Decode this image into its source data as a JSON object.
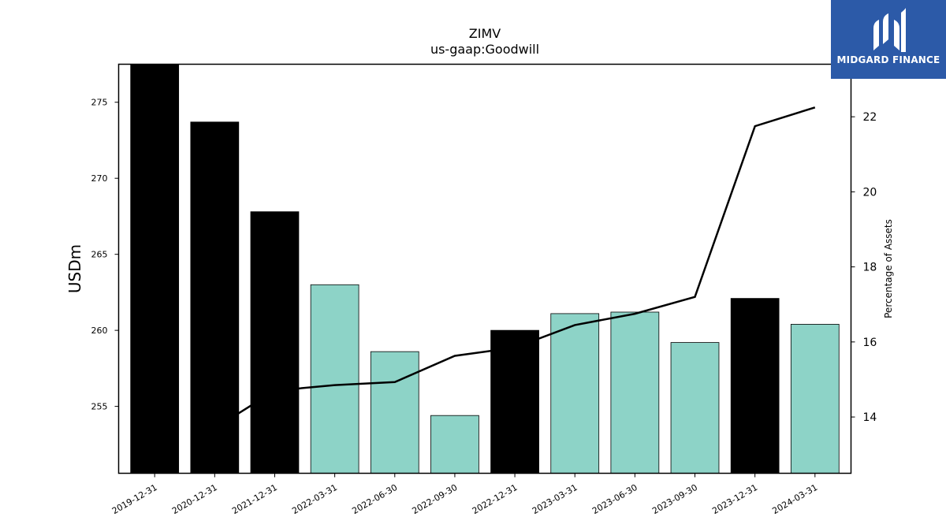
{
  "chart_data": {
    "type": "bar",
    "title": "ZIMV",
    "subtitle": "us-gaap:Goodwill",
    "ylabel": "USDm",
    "y2label": "Percentage of Assets",
    "categories": [
      "2019-12-31",
      "2020-12-31",
      "2021-12-31",
      "2022-03-31",
      "2022-06-30",
      "2022-09-30",
      "2022-12-31",
      "2023-03-31",
      "2023-06-30",
      "2023-09-30",
      "2023-12-31",
      "2024-03-31"
    ],
    "series": [
      {
        "type": "bar",
        "values": [
          277.5,
          273.7,
          267.8,
          263.0,
          258.6,
          254.4,
          260.0,
          261.1,
          261.2,
          259.2,
          262.1,
          260.4
        ],
        "colors": [
          "#000000",
          "#000000",
          "#000000",
          "#8dd3c7",
          "#8dd3c7",
          "#8dd3c7",
          "#000000",
          "#8dd3c7",
          "#8dd3c7",
          "#8dd3c7",
          "#000000",
          "#8dd3c7"
        ]
      },
      {
        "type": "line",
        "axis": "right",
        "color": "#000000",
        "values": [
          null,
          13.7,
          14.7,
          14.85,
          14.93,
          15.63,
          15.85,
          16.45,
          16.75,
          17.2,
          21.75,
          22.25
        ]
      }
    ],
    "ylim": [
      250.6,
      277.5
    ],
    "y2lim": [
      12.5,
      23.4
    ],
    "yticks": [
      255,
      260,
      265,
      270,
      275
    ],
    "y2ticks": [
      14,
      16,
      18,
      20,
      22
    ],
    "grid": false
  },
  "logo": {
    "text": "MIDGARD FINANCE",
    "background": "#2c5aa8"
  }
}
